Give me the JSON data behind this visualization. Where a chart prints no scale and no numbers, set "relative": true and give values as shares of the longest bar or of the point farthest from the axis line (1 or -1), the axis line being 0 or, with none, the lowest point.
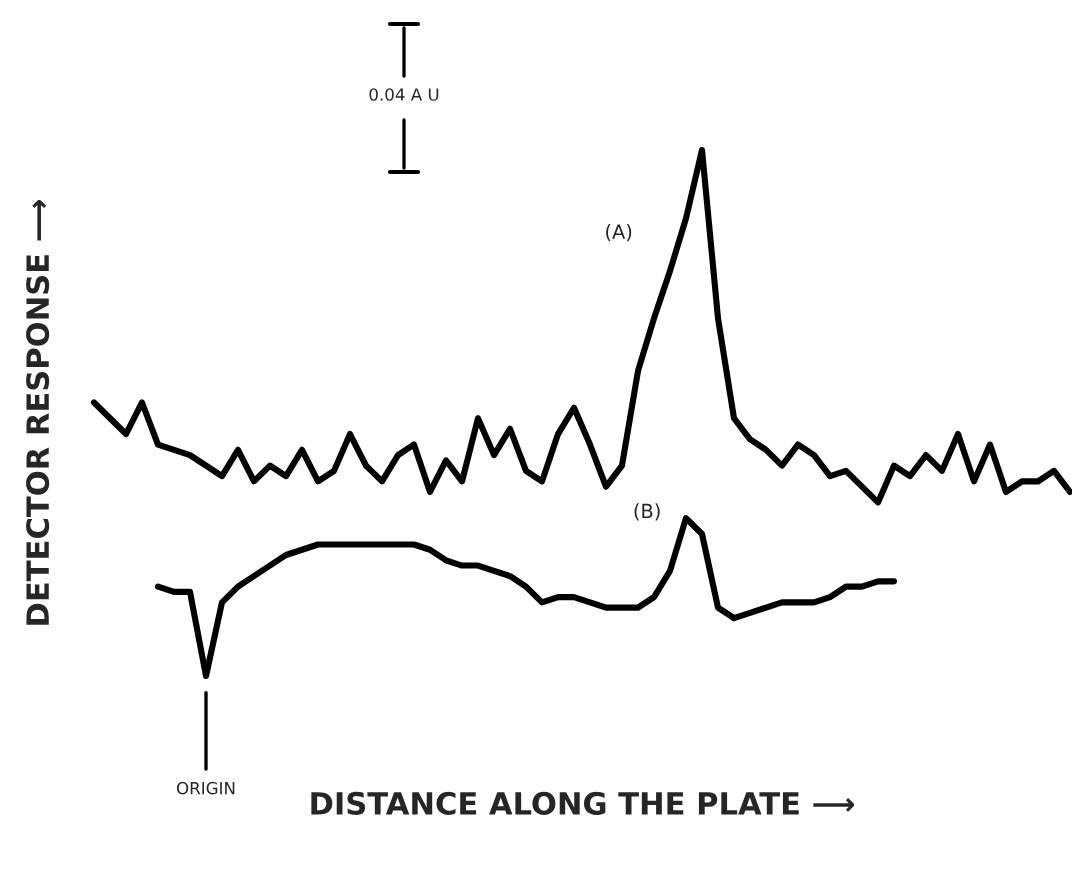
{
  "chart_data": {
    "type": "line",
    "relative": true,
    "xlabel": "DISTANCE ALONG THE PLATE ⟶",
    "ylabel": "DETECTOR RESPONSE ⟶",
    "annotations": [
      "0.04 A U",
      "ORIGIN"
    ],
    "categories": [
      null,
      null,
      null,
      null,
      null,
      null,
      null,
      null,
      null,
      null,
      null,
      null,
      null,
      null,
      null,
      null,
      null,
      null,
      null,
      null,
      null,
      null,
      null,
      null,
      null,
      null,
      null,
      null,
      null,
      null,
      null,
      null,
      null,
      null,
      null,
      null,
      null,
      null,
      null,
      null,
      null,
      null,
      null,
      null,
      null,
      null,
      null,
      null,
      null,
      null,
      null,
      null,
      null,
      null,
      null,
      null,
      null,
      null,
      null,
      null,
      null,
      null
    ],
    "grid": false,
    "legend": false,
    "marker": "none",
    "line_style": "solid",
    "series": [
      {
        "name": "(A)",
        "color": "#000000",
        "values": [
          0.52,
          0.49,
          0.46,
          0.52,
          0.44,
          0.43,
          0.42,
          0.4,
          0.38,
          0.43,
          0.37,
          0.4,
          0.38,
          0.43,
          0.37,
          0.39,
          0.46,
          0.4,
          0.37,
          0.42,
          0.44,
          0.35,
          0.41,
          0.37,
          0.49,
          0.42,
          0.47,
          0.39,
          0.37,
          0.46,
          0.51,
          0.44,
          0.36,
          0.4,
          0.58,
          0.68,
          0.77,
          0.87,
          1.0,
          0.68,
          0.49,
          0.45,
          0.43,
          0.4,
          0.44,
          0.42,
          0.38,
          0.39,
          0.36,
          0.33,
          0.4,
          0.38,
          0.42,
          0.39,
          0.46,
          0.37,
          0.44,
          0.35,
          0.37,
          0.37,
          0.39,
          0.35
        ]
      },
      {
        "name": "(B)",
        "color": "#000000",
        "values": [
          null,
          null,
          null,
          null,
          0.17,
          0.16,
          0.16,
          0,
          0.14,
          0.17,
          0.19,
          0.21,
          0.23,
          0.24,
          0.25,
          0.25,
          0.25,
          0.25,
          0.25,
          0.25,
          0.25,
          0.24,
          0.22,
          0.21,
          0.21,
          0.2,
          0.19,
          0.17,
          0.14,
          0.15,
          0.15,
          0.14,
          0.13,
          0.13,
          0.13,
          0.15,
          0.2,
          0.3,
          0.27,
          0.13,
          0.11,
          0.12,
          0.13,
          0.14,
          0.14,
          0.14,
          0.15,
          0.17,
          0.17,
          0.18,
          0.18,
          null,
          null,
          null,
          null,
          null,
          null,
          null,
          null,
          null,
          null,
          null
        ]
      }
    ]
  }
}
